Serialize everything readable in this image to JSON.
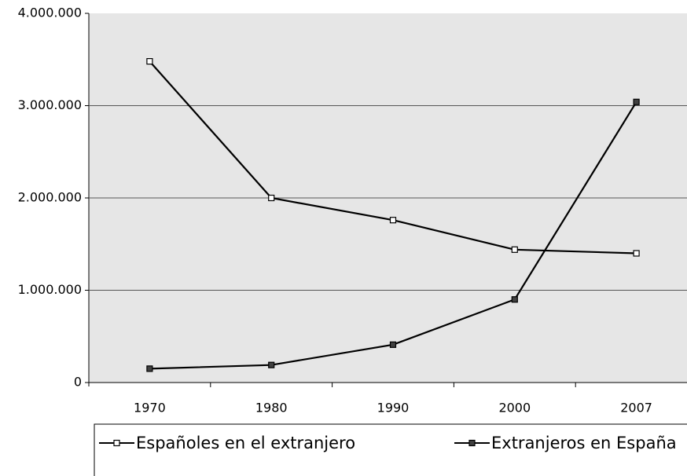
{
  "chart_data": {
    "type": "line",
    "categories": [
      "1970",
      "1980",
      "1990",
      "2000",
      "2007"
    ],
    "series": [
      {
        "name": "Españoles en el extranjero",
        "color": "#000000",
        "marker_fill": "#ffffff",
        "values": [
          3480000,
          2000000,
          1760000,
          1440000,
          1400000
        ]
      },
      {
        "name": "Extranjeros en España",
        "color": "#000000",
        "marker_fill": "#404040",
        "values": [
          150000,
          190000,
          410000,
          900000,
          3040000
        ]
      }
    ],
    "ylim": [
      0,
      4000000
    ],
    "yticks": [
      0,
      {
        "value": 1000000,
        "label": "1.000.000"
      },
      {
        "value": 2000000,
        "label": "2.000.000"
      },
      {
        "value": 3000000,
        "label": "3.000.000"
      },
      {
        "value": 4000000,
        "label": "4.000.000"
      }
    ],
    "grid": true,
    "legend": "bottom"
  }
}
